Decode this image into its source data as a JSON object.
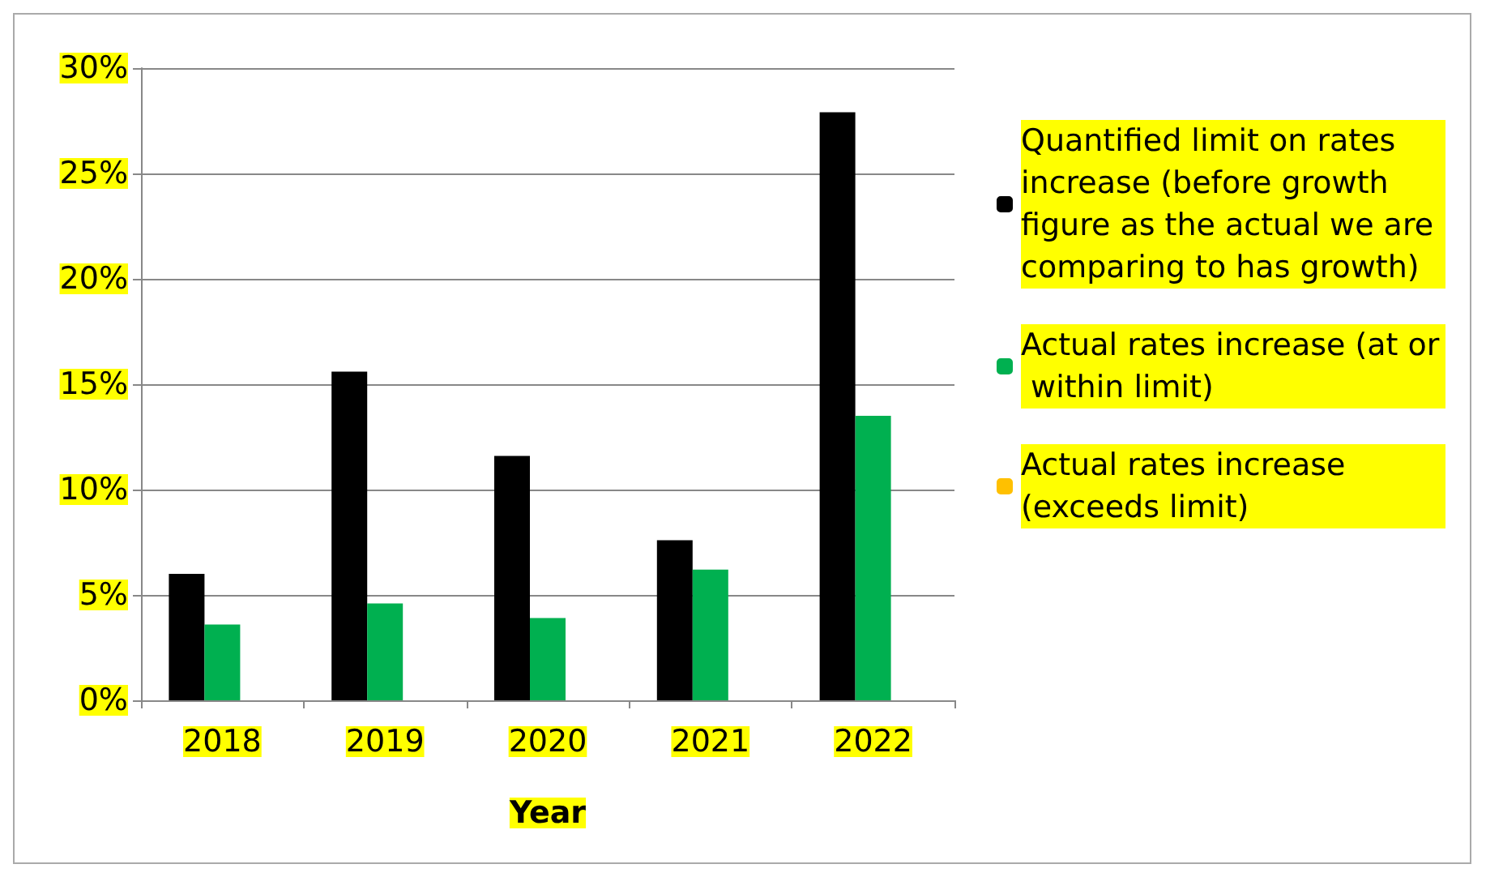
{
  "chart_data": {
    "type": "bar",
    "xlabel": "Year",
    "categories": [
      "2018",
      "2019",
      "2020",
      "2021",
      "2022"
    ],
    "series": [
      {
        "name": "Quantified limit on rates increase (before growth figure as the actual we are comparing to has growth)",
        "color": "#000000",
        "values": [
          6.0,
          15.6,
          11.6,
          7.6,
          27.9
        ]
      },
      {
        "name": "Actual rates increase (at or within limit)",
        "color": "#00b050",
        "values": [
          3.6,
          4.6,
          3.9,
          6.2,
          13.5
        ]
      },
      {
        "name": "Actual rates increase (exceeds limit)",
        "color": "#ffc000",
        "values": [
          null,
          null,
          null,
          null,
          null
        ]
      }
    ],
    "ylim": [
      0,
      30
    ],
    "yticks": [
      {
        "value": 0,
        "label": "0%"
      },
      {
        "value": 5,
        "label": "5%"
      },
      {
        "value": 10,
        "label": "10%"
      },
      {
        "value": 15,
        "label": "15%"
      },
      {
        "value": 20,
        "label": "20%"
      },
      {
        "value": 25,
        "label": "25%"
      },
      {
        "value": 30,
        "label": "30%"
      }
    ],
    "grid": "y",
    "legend": "right"
  }
}
